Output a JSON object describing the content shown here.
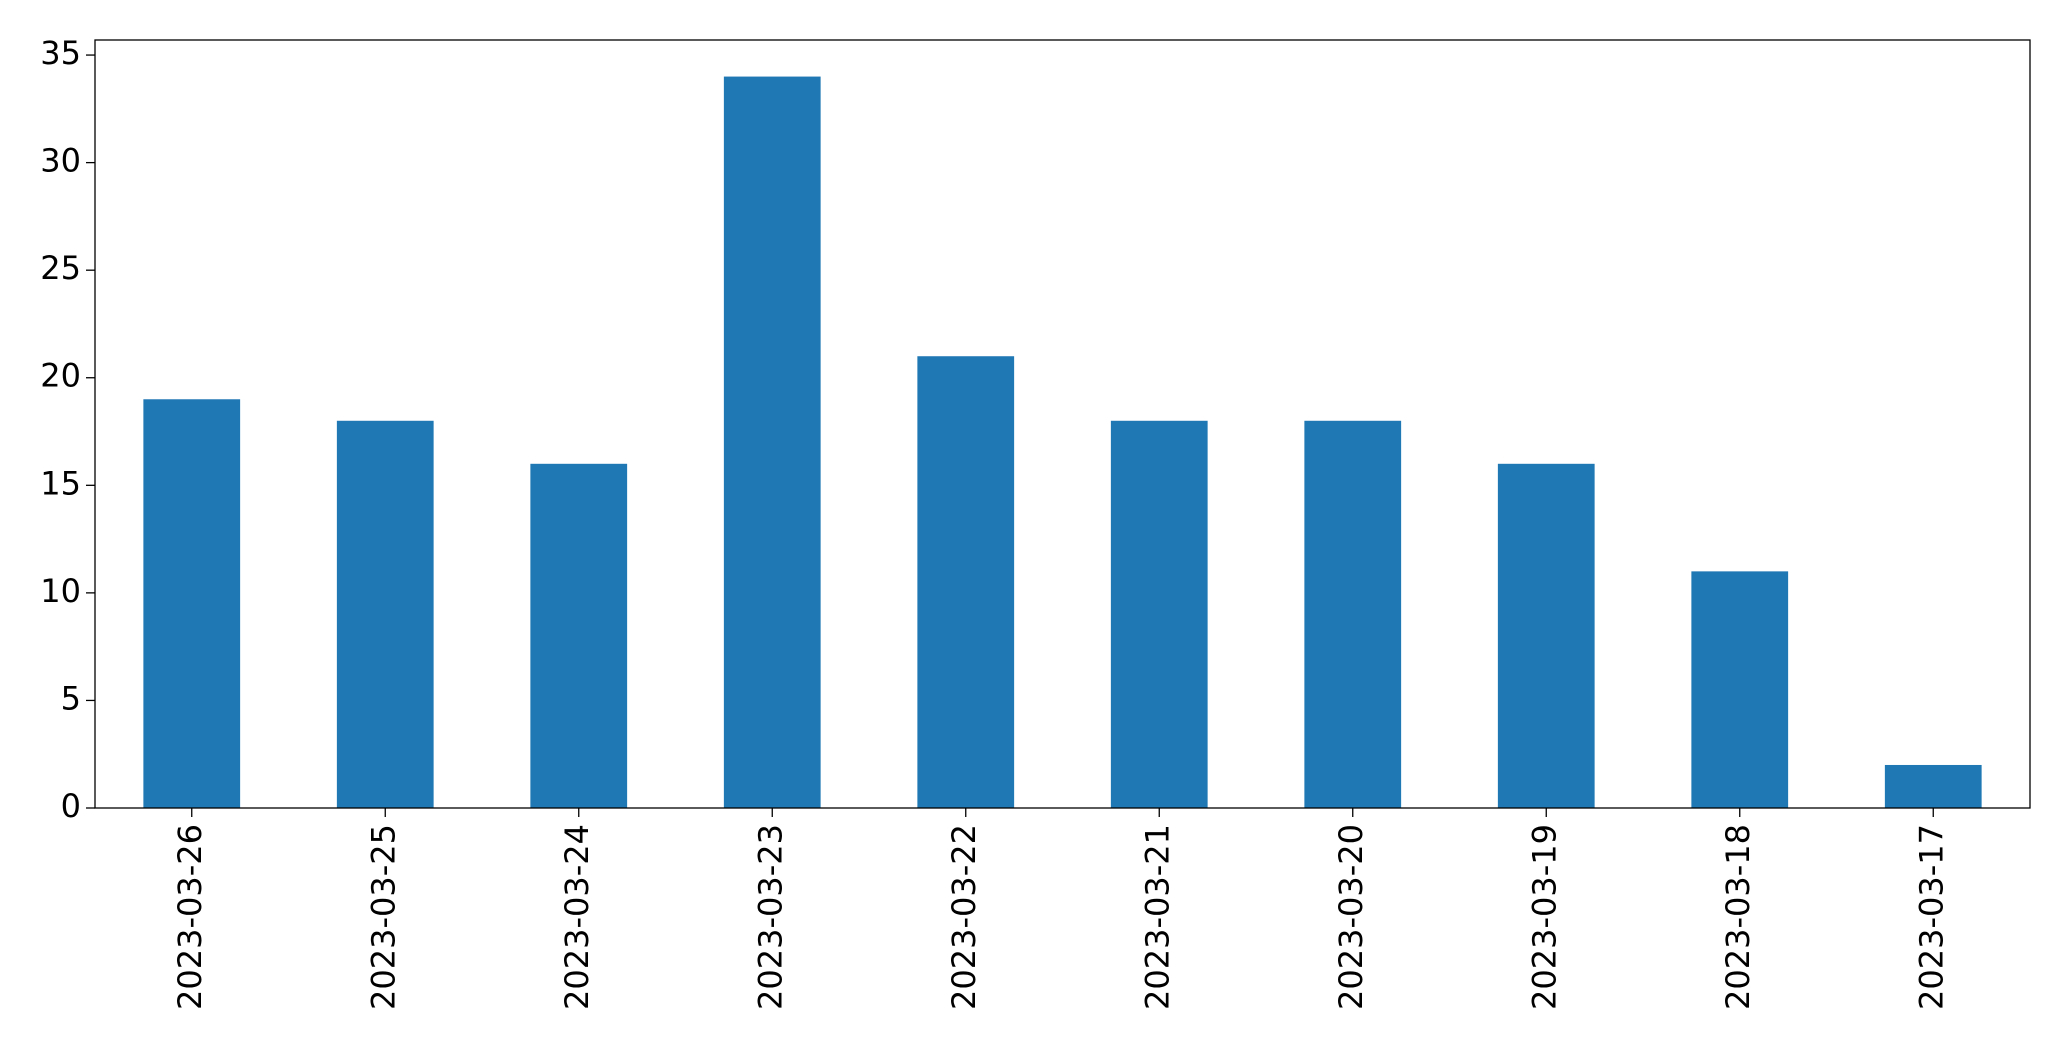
{
  "chart_data": {
    "type": "bar",
    "categories": [
      "2023-03-26",
      "2023-03-25",
      "2023-03-24",
      "2023-03-23",
      "2023-03-22",
      "2023-03-21",
      "2023-03-20",
      "2023-03-19",
      "2023-03-18",
      "2023-03-17"
    ],
    "values": [
      19,
      18,
      16,
      34,
      21,
      18,
      18,
      16,
      11,
      2
    ],
    "color": "#1f77b4",
    "ylim": [
      0,
      35.7
    ],
    "yticks": [
      0,
      5,
      10,
      15,
      20,
      25,
      30,
      35
    ],
    "grid": false
  }
}
